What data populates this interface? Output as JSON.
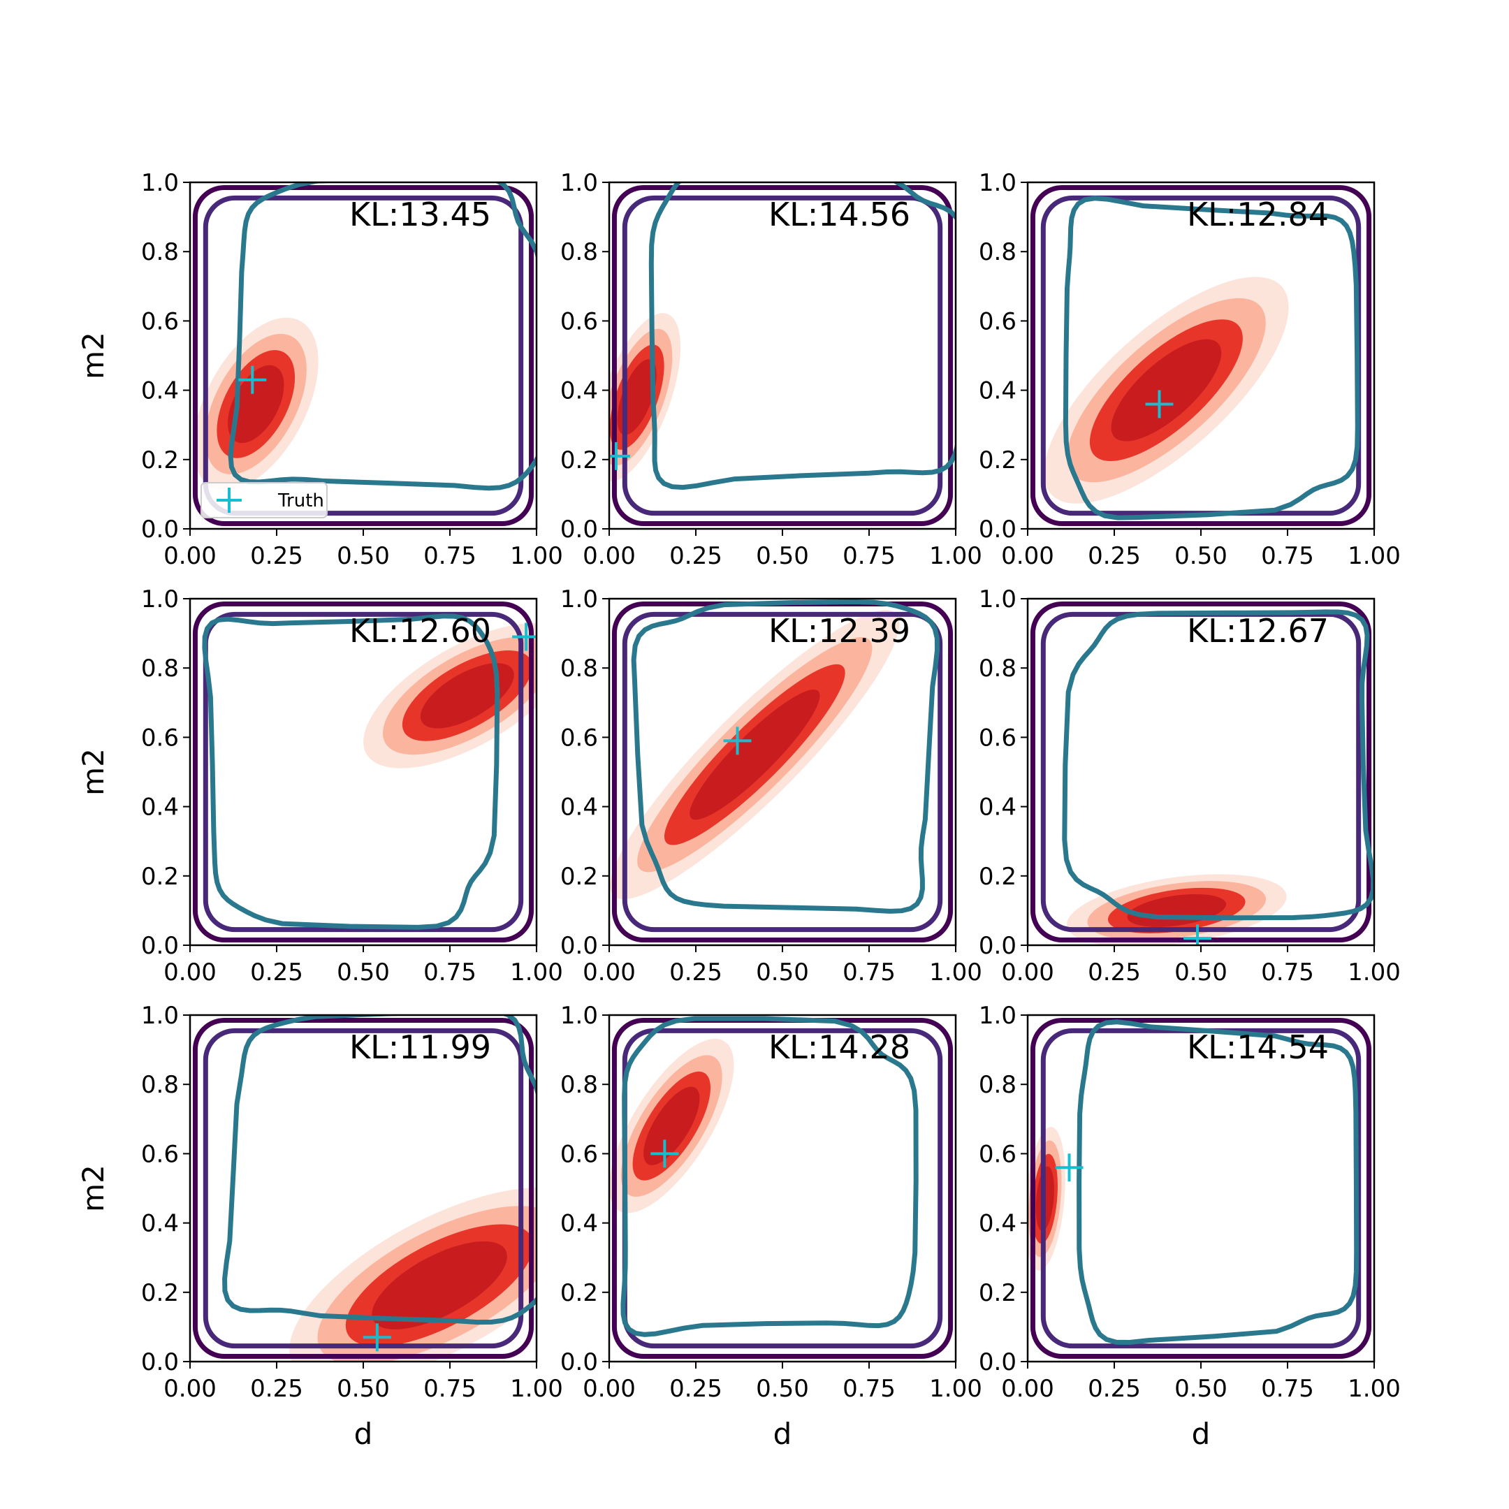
{
  "figure": {
    "rows": 3,
    "cols": 3,
    "xlabel": "d",
    "ylabel": "m2",
    "xlim": [
      0,
      1
    ],
    "ylim": [
      0,
      1
    ],
    "xticks": [
      "0.00",
      "0.25",
      "0.50",
      "0.75",
      "1.00"
    ],
    "yticks": [
      "0.0",
      "0.2",
      "0.4",
      "0.6",
      "0.8",
      "1.0"
    ],
    "legend": {
      "label": "Truth",
      "marker": "+",
      "color": "#17becf",
      "location": "lower-left",
      "panel": 0
    },
    "colors": {
      "posterior_fill": [
        "#fde4da",
        "#fbb59f",
        "#e8352a",
        "#c91c1f"
      ],
      "contour_lines": [
        "#440154",
        "#482878",
        "#2a788e"
      ],
      "truth": "#17becf"
    }
  },
  "chart_data": [
    {
      "type": "contour",
      "kl_label": "KL:13.45",
      "truth": [
        0.18,
        0.43
      ],
      "posterior_center": [
        0.19,
        0.36
      ],
      "posterior_spread": [
        0.09,
        0.17
      ],
      "posterior_angle": 62,
      "prior_inner": [
        0.57,
        0.55,
        0.44,
        0.36
      ],
      "prior_outer": [
        0.5,
        0.5,
        0.5,
        0.5
      ]
    },
    {
      "type": "contour",
      "kl_label": "KL:14.56",
      "truth": [
        0.02,
        0.21
      ],
      "posterior_center": [
        0.08,
        0.38
      ],
      "posterior_spread": [
        0.06,
        0.16
      ],
      "posterior_angle": 70,
      "prior_inner": [
        0.56,
        0.57,
        0.45,
        0.35
      ],
      "prior_outer": [
        0.5,
        0.5,
        0.5,
        0.5
      ]
    },
    {
      "type": "contour",
      "kl_label": "KL:12.84",
      "truth": [
        0.38,
        0.36
      ],
      "posterior_center": [
        0.4,
        0.4
      ],
      "posterior_spread": [
        0.11,
        0.28
      ],
      "posterior_angle": 42,
      "prior_inner": [
        0.52,
        0.5,
        0.42,
        0.4
      ],
      "prior_outer": [
        0.5,
        0.5,
        0.5,
        0.5
      ]
    },
    {
      "type": "contour",
      "kl_label": "KL:12.60",
      "truth": [
        0.97,
        0.89
      ],
      "posterior_center": [
        0.8,
        0.72
      ],
      "posterior_spread": [
        0.09,
        0.21
      ],
      "posterior_angle": 30,
      "prior_inner": [
        0.46,
        0.52,
        0.41,
        0.4
      ],
      "prior_outer": [
        0.5,
        0.5,
        0.5,
        0.5
      ]
    },
    {
      "type": "contour",
      "kl_label": "KL:12.39",
      "truth": [
        0.37,
        0.59
      ],
      "posterior_center": [
        0.42,
        0.55
      ],
      "posterior_spread": [
        0.08,
        0.36
      ],
      "posterior_angle": 45,
      "prior_inner": [
        0.52,
        0.55,
        0.42,
        0.4
      ],
      "prior_outer": [
        0.5,
        0.48,
        0.5,
        0.5
      ]
    },
    {
      "type": "contour",
      "kl_label": "KL:12.67",
      "truth": [
        0.49,
        0.02
      ],
      "posterior_center": [
        0.43,
        0.1
      ],
      "posterior_spread": [
        0.06,
        0.2
      ],
      "posterior_angle": 8,
      "prior_inner": [
        0.57,
        0.52,
        0.43,
        0.37
      ],
      "prior_outer": [
        0.5,
        0.5,
        0.5,
        0.5
      ]
    },
    {
      "type": "contour",
      "kl_label": "KL:11.99",
      "truth": [
        0.54,
        0.07
      ],
      "posterior_center": [
        0.72,
        0.22
      ],
      "posterior_spread": [
        0.12,
        0.3
      ],
      "posterior_angle": 28,
      "prior_inner": [
        0.57,
        0.55,
        0.45,
        0.37
      ],
      "prior_outer": [
        0.5,
        0.5,
        0.5,
        0.5
      ]
    },
    {
      "type": "contour",
      "kl_label": "KL:14.28",
      "truth": [
        0.16,
        0.6
      ],
      "posterior_center": [
        0.18,
        0.68
      ],
      "posterior_spread": [
        0.07,
        0.18
      ],
      "posterior_angle": 58,
      "prior_inner": [
        0.45,
        0.52,
        0.42,
        0.37
      ],
      "prior_outer": [
        0.5,
        0.5,
        0.5,
        0.5
      ]
    },
    {
      "type": "contour",
      "kl_label": "KL:14.54",
      "truth": [
        0.12,
        0.56
      ],
      "posterior_center": [
        0.05,
        0.47
      ],
      "posterior_spread": [
        0.035,
        0.13
      ],
      "posterior_angle": 85,
      "prior_inner": [
        0.54,
        0.52,
        0.4,
        0.37
      ],
      "prior_outer": [
        0.5,
        0.5,
        0.5,
        0.5
      ]
    }
  ]
}
